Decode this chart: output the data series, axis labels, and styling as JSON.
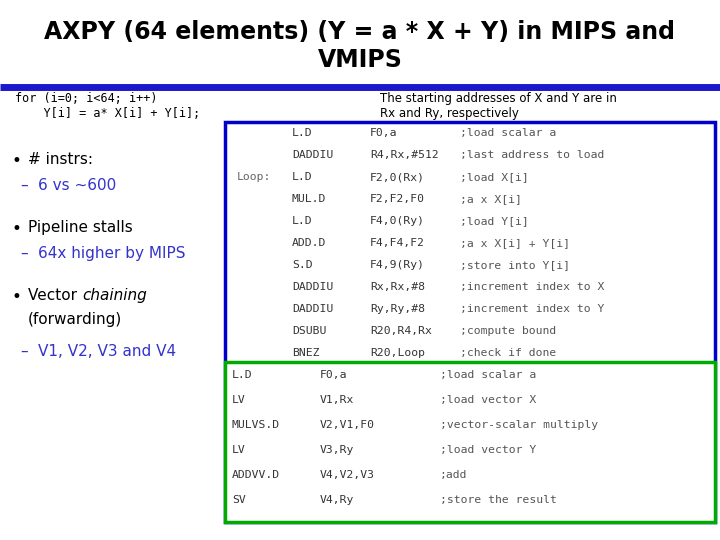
{
  "title_line1": "AXPY (64 elements) (Y = a * X + Y) in MIPS and",
  "title_line2": "VMIPS",
  "bg_color": "#ffffff",
  "divider_color": "#1a1acc",
  "mips_box_color": "#0000cc",
  "vmips_box_color": "#00aa00",
  "bullet_color": "#000000",
  "sub_color": "#3333cc",
  "code_color": "#333333",
  "comment_color": "#555555",
  "mips_code": [
    [
      "",
      "L.D",
      "F0,a",
      ";load scalar a"
    ],
    [
      "",
      "DADDIU",
      "R4,Rx,#512",
      ";last address to load"
    ],
    [
      "Loop:",
      "L.D",
      "F2,0(Rx)",
      ";load X[i]"
    ],
    [
      "",
      "MUL.D",
      "F2,F2,F0",
      ";a x X[i]"
    ],
    [
      "",
      "L.D",
      "F4,0(Ry)",
      ";load Y[i]"
    ],
    [
      "",
      "ADD.D",
      "F4,F4,F2",
      ";a x X[i] + Y[i]"
    ],
    [
      "",
      "S.D",
      "F4,9(Ry)",
      ";store into Y[i]"
    ],
    [
      "",
      "DADDIU",
      "Rx,Rx,#8",
      ";increment index to X"
    ],
    [
      "",
      "DADDIU",
      "Ry,Ry,#8",
      ";increment index to Y"
    ],
    [
      "",
      "DSUBU",
      "R20,R4,Rx",
      ";compute bound"
    ],
    [
      "",
      "BNEZ",
      "R20,Loop",
      ";check if done"
    ]
  ],
  "vmips_code": [
    [
      "L.D",
      "F0,a",
      ";load scalar a"
    ],
    [
      "LV",
      "V1,Rx",
      ";load vector X"
    ],
    [
      "MULVS.D",
      "V2,V1,F0",
      ";vector-scalar multiply"
    ],
    [
      "LV",
      "V3,Ry",
      ";load vector Y"
    ],
    [
      "ADDVV.D",
      "V4,V2,V3",
      ";add"
    ],
    [
      "SV",
      "V4,Ry",
      ";store the result"
    ]
  ]
}
